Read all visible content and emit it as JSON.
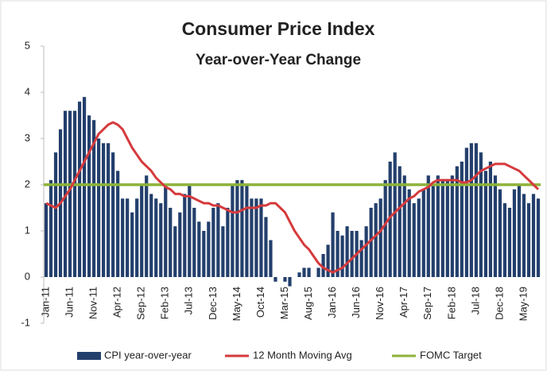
{
  "chart_data": {
    "type": "bar",
    "title": "Consumer Price Index",
    "subtitle": "Year-over-Year Change",
    "categories": [
      "Jan-11",
      null,
      null,
      null,
      null,
      "Jun-11",
      null,
      null,
      null,
      null,
      "Nov-11",
      null,
      null,
      null,
      null,
      "Apr-12",
      null,
      null,
      null,
      null,
      "Sep-12",
      null,
      null,
      null,
      null,
      "Feb-13",
      null,
      null,
      null,
      null,
      "Jul-13",
      null,
      null,
      null,
      null,
      "Dec-13",
      null,
      null,
      null,
      null,
      "May-14",
      null,
      null,
      null,
      null,
      "Oct-14",
      null,
      null,
      null,
      null,
      "Mar-15",
      null,
      null,
      null,
      null,
      "Aug-15",
      null,
      null,
      null,
      null,
      "Jan-16",
      null,
      null,
      null,
      null,
      "Jun-16",
      null,
      null,
      null,
      null,
      "Nov-16",
      null,
      null,
      null,
      null,
      "Apr-17",
      null,
      null,
      null,
      null,
      "Sep-17",
      null,
      null,
      null,
      null,
      "Feb-18",
      null,
      null,
      null,
      null,
      "Jul-18",
      null,
      null,
      null,
      null,
      "Dec-18",
      null,
      null,
      null,
      null,
      "May-19",
      null,
      null,
      null
    ],
    "series": [
      {
        "name": "CPI year-over-year",
        "color": "#233f6c",
        "values": [
          1.6,
          2.1,
          2.7,
          3.2,
          3.6,
          3.6,
          3.6,
          3.8,
          3.9,
          3.5,
          3.4,
          3.0,
          2.9,
          2.9,
          2.7,
          2.3,
          1.7,
          1.7,
          1.4,
          1.7,
          2.0,
          2.2,
          1.8,
          1.7,
          1.6,
          2.0,
          1.5,
          1.1,
          1.4,
          1.8,
          2.0,
          1.5,
          1.2,
          1.0,
          1.2,
          1.5,
          1.6,
          1.1,
          1.5,
          2.0,
          2.1,
          2.1,
          2.0,
          1.7,
          1.7,
          1.7,
          1.3,
          0.8,
          -0.1,
          0.0,
          -0.1,
          -0.2,
          0.0,
          0.1,
          0.2,
          0.2,
          0.0,
          0.2,
          0.5,
          0.7,
          1.4,
          1.0,
          0.9,
          1.1,
          1.0,
          1.0,
          0.8,
          1.1,
          1.5,
          1.6,
          1.7,
          2.1,
          2.5,
          2.7,
          2.4,
          2.2,
          1.9,
          1.6,
          1.7,
          1.9,
          2.2,
          2.0,
          2.2,
          2.1,
          2.1,
          2.2,
          2.4,
          2.5,
          2.8,
          2.9,
          2.9,
          2.7,
          2.3,
          2.5,
          2.2,
          1.9,
          1.6,
          1.5,
          1.9,
          2.0,
          1.8,
          1.6,
          1.8,
          1.7
        ]
      },
      {
        "name": "12 Month Moving Avg",
        "color": "#d63a3c",
        "values": [
          1.6,
          1.55,
          1.5,
          1.6,
          1.75,
          1.9,
          2.1,
          2.3,
          2.5,
          2.7,
          2.9,
          3.1,
          3.2,
          3.3,
          3.35,
          3.3,
          3.2,
          3.0,
          2.8,
          2.65,
          2.5,
          2.4,
          2.3,
          2.15,
          2.05,
          1.95,
          1.9,
          1.8,
          1.8,
          1.75,
          1.75,
          1.7,
          1.65,
          1.6,
          1.6,
          1.55,
          1.55,
          1.5,
          1.45,
          1.4,
          1.4,
          1.45,
          1.5,
          1.5,
          1.5,
          1.55,
          1.55,
          1.6,
          1.6,
          1.5,
          1.4,
          1.2,
          1.0,
          0.85,
          0.7,
          0.6,
          0.45,
          0.3,
          0.2,
          0.15,
          0.1,
          0.15,
          0.2,
          0.3,
          0.4,
          0.5,
          0.6,
          0.7,
          0.8,
          0.9,
          1.0,
          1.15,
          1.3,
          1.4,
          1.5,
          1.6,
          1.7,
          1.75,
          1.85,
          1.9,
          1.95,
          2.05,
          2.1,
          2.1,
          2.1,
          2.1,
          2.1,
          2.05,
          2.05,
          2.1,
          2.2,
          2.3,
          2.35,
          2.4,
          2.45,
          2.45,
          2.45,
          2.4,
          2.35,
          2.3,
          2.2,
          2.1,
          2.0,
          1.9
        ]
      }
    ],
    "target": {
      "name": "FOMC Target",
      "color": "#8db33a",
      "value": 2
    },
    "ylim": [
      -1,
      5
    ],
    "yticks": [
      -1,
      0,
      1,
      2,
      3,
      4,
      5
    ]
  }
}
